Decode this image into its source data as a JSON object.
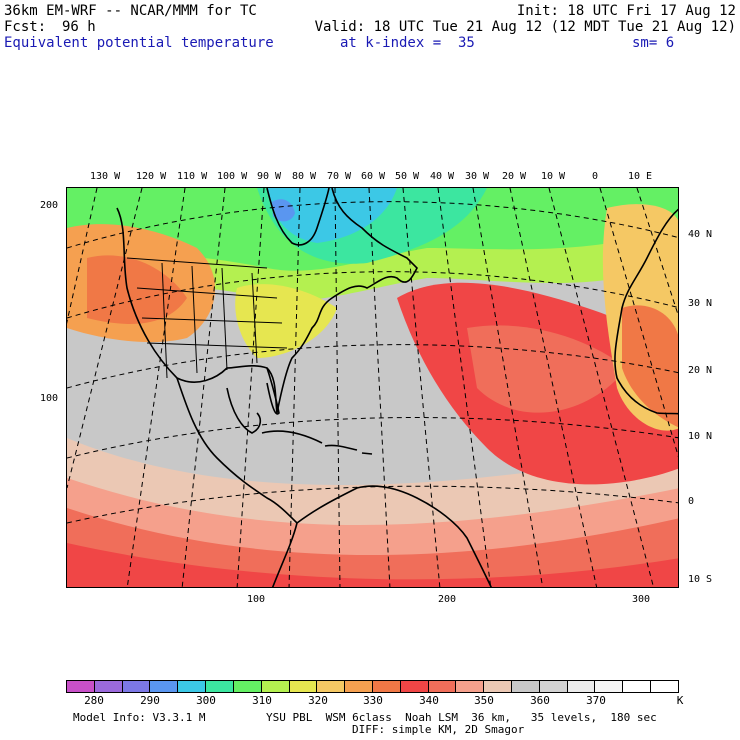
{
  "header": {
    "model": "36km EM-WRF -- NCAR/MMM for TC",
    "init": "Init: 18 UTC Fri 17 Aug 12",
    "fcst_label": "Fcst:",
    "fcst_value": "96 h",
    "valid": "Valid: 18 UTC Tue 21 Aug 12 (12 MDT Tue 21 Aug 12)",
    "field": "Equivalent potential temperature",
    "level": "at k-index =  35",
    "smoothing": "sm= 6"
  },
  "map": {
    "longitude_labels": [
      "130 W",
      "120 W",
      "110 W",
      "100 W",
      "90 W",
      "80 W",
      "70 W",
      "60 W",
      "50 W",
      "40 W",
      "30 W",
      "20 W",
      "10 W",
      "0",
      "10 E"
    ],
    "latitude_labels": [
      "40 N",
      "30 N",
      "20 N",
      "10 N",
      "0",
      "10 S"
    ],
    "y_grid_labels": [
      "200",
      "100"
    ],
    "x_grid_labels": [
      "100",
      "200",
      "300"
    ]
  },
  "colorbar": {
    "colors": [
      "#c850c8",
      "#9b6adc",
      "#7c78e6",
      "#5a96f0",
      "#3cc8e6",
      "#3ce6a0",
      "#64f064",
      "#b4f050",
      "#e6e650",
      "#f5c864",
      "#f5a050",
      "#f07846",
      "#f04646",
      "#f06e5a",
      "#f5a08c",
      "#ebc8b4",
      "#c8c8c8",
      "#d2d2d2",
      "#ebebeb",
      "#f5f5f5",
      "#ffffff",
      "#ffffff"
    ],
    "labels": [
      "280",
      "290",
      "300",
      "310",
      "320",
      "330",
      "340",
      "350",
      "360",
      "370"
    ],
    "unit": "K"
  },
  "footer": {
    "model_info": "Model Info: V3.3.1 M",
    "physics_1": "YSU PBL  WSM 6class  Noah LSM  36 km,   35 levels,  180 sec",
    "physics_2": "DIFF: simple KM, 2D Smagor"
  }
}
